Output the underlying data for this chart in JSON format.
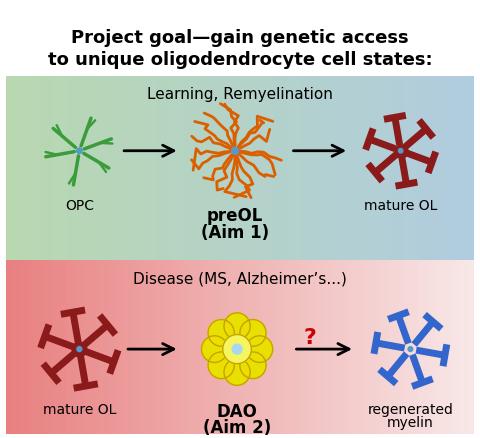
{
  "title_line1": "Project goal—gain genetic access",
  "title_line2": "to unique oligodendrocyte cell states:",
  "title_fontsize": 13,
  "title_bold": true,
  "panel1_label": "Learning, Remyelination",
  "panel1_bg_left": "#b8d8b0",
  "panel1_bg_right": "#b0cce0",
  "panel2_label": "Disease (MS, Alzheimer’s...)",
  "panel2_bg_left": "#e8b0b0",
  "panel2_bg_right": "#f5e0e0",
  "opc_color": "#3a9c3a",
  "preol_color": "#d95f00",
  "mature_ol_color": "#8b1a1a",
  "dao_color": "#e8e000",
  "dao_outline": "#c8a000",
  "blue_center": "#5599cc",
  "regenerated_color": "#3366cc",
  "label_fontsize": 10,
  "bold_label_fontsize": 13
}
